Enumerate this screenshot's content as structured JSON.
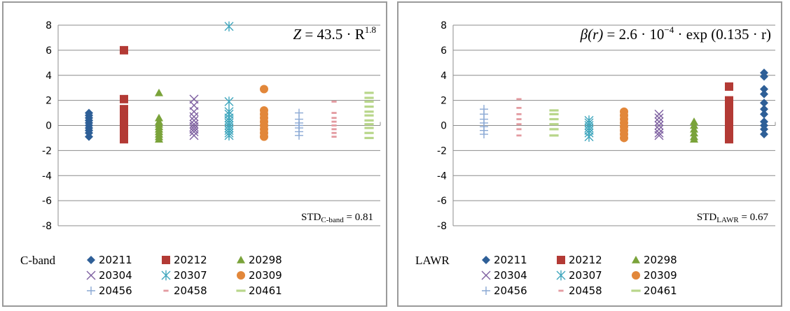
{
  "chart_data": [
    {
      "type": "scatter",
      "panel_label": "C-band",
      "formula": {
        "lhs": "Z",
        "rhs": "43.5 · R",
        "sup": "1.8"
      },
      "std": {
        "prefix": "STD",
        "subscript": "C-band",
        "suffix": " = 0.81"
      },
      "ylim": [
        -8,
        8
      ],
      "yticks": [
        "8",
        "6",
        "4",
        "2",
        "0",
        "-2",
        "-4",
        "-6",
        "-8"
      ],
      "grid": true,
      "legend_position": "bottom",
      "series": [
        {
          "name": "20211",
          "marker": "diamond",
          "color": "#2e5f97",
          "values": [
            -0.9,
            -0.6,
            -0.4,
            -0.2,
            0.0,
            0.2,
            0.4,
            0.6,
            0.8,
            1.0
          ]
        },
        {
          "name": "20212",
          "marker": "square",
          "color": "#b33a35",
          "values": [
            6.0,
            2.1,
            1.3,
            1.0,
            0.7,
            0.4,
            0.1,
            -0.2,
            -0.5,
            -0.8,
            -1.1
          ]
        },
        {
          "name": "20298",
          "marker": "triangle",
          "color": "#7aa33a",
          "values": [
            2.6,
            0.6,
            0.3,
            0.1,
            -0.1,
            -0.3,
            -0.5,
            -0.7,
            -0.9,
            -1.1
          ]
        },
        {
          "name": "20304",
          "marker": "x",
          "color": "#7d5fa0",
          "values": [
            2.1,
            1.6,
            1.1,
            0.7,
            0.4,
            0.1,
            -0.1,
            -0.3,
            -0.5,
            -0.8
          ]
        },
        {
          "name": "20307",
          "marker": "asterisk",
          "color": "#3fa6bd",
          "values": [
            7.9,
            1.9,
            1.1,
            0.9,
            0.6,
            0.4,
            0.2,
            0.0,
            -0.2,
            -0.4,
            -0.6,
            -0.8
          ]
        },
        {
          "name": "20309",
          "marker": "circle",
          "color": "#e2873a",
          "values": [
            2.9,
            1.2,
            0.9,
            0.6,
            0.3,
            0.0,
            -0.3,
            -0.6,
            -0.9
          ]
        },
        {
          "name": "20456",
          "marker": "plus",
          "color": "#8aa8d4",
          "values": [
            1.0,
            0.5,
            0.2,
            0.0,
            -0.2,
            -0.5,
            -0.8
          ]
        },
        {
          "name": "20458",
          "marker": "dash",
          "color": "#e39aa0",
          "values": [
            1.9,
            1.0,
            0.6,
            0.3,
            0.0,
            -0.3,
            -0.6,
            -0.9
          ]
        },
        {
          "name": "20461",
          "marker": "bar",
          "color": "#b8d68a",
          "values": [
            2.6,
            2.2,
            1.9,
            1.5,
            1.1,
            0.8,
            0.4,
            0.1,
            -0.2,
            -0.6,
            -1.0
          ]
        }
      ]
    },
    {
      "type": "scatter",
      "panel_label": "LAWR",
      "formula": {
        "lhs": "β(r)",
        "rhs": "2.6 · 10",
        "sup": "−4",
        "tail": " · exp (0.135 · r)"
      },
      "std": {
        "prefix": "STD",
        "subscript": "LAWR",
        "suffix": " = 0.67"
      },
      "ylim": [
        -8,
        8
      ],
      "yticks": [
        "8",
        "6",
        "4",
        "2",
        "0",
        "-2",
        "-4",
        "-6",
        "-8"
      ],
      "grid": true,
      "legend_position": "bottom",
      "series": [
        {
          "name": "20456",
          "marker": "plus",
          "color": "#8aa8d4",
          "values": [
            1.3,
            0.9,
            0.5,
            0.2,
            -0.1,
            -0.4,
            -0.7
          ]
        },
        {
          "name": "20458",
          "marker": "dash",
          "color": "#e39aa0",
          "values": [
            2.1,
            1.4,
            0.9,
            0.5,
            0.1,
            -0.3,
            -0.8
          ]
        },
        {
          "name": "20461",
          "marker": "bar",
          "color": "#b8d68a",
          "values": [
            1.2,
            0.9,
            0.5,
            0.1,
            -0.3,
            -0.8
          ]
        },
        {
          "name": "20307",
          "marker": "asterisk",
          "color": "#3fa6bd",
          "values": [
            0.4,
            0.2,
            0.0,
            -0.2,
            -0.4,
            -0.6,
            -0.9
          ]
        },
        {
          "name": "20309",
          "marker": "circle",
          "color": "#e2873a",
          "values": [
            1.1,
            0.8,
            0.5,
            0.2,
            -0.1,
            -0.4,
            -0.7,
            -1.0
          ]
        },
        {
          "name": "20304",
          "marker": "x",
          "color": "#7d5fa0",
          "values": [
            0.9,
            0.6,
            0.3,
            0.0,
            -0.3,
            -0.6,
            -0.8
          ]
        },
        {
          "name": "20298",
          "marker": "triangle",
          "color": "#7aa33a",
          "values": [
            0.3,
            0.0,
            -0.3,
            -0.6,
            -0.9,
            -1.1
          ]
        },
        {
          "name": "20212",
          "marker": "square",
          "color": "#b33a35",
          "values": [
            3.1,
            2.0,
            1.4,
            0.9,
            0.4,
            -0.1,
            -0.6,
            -1.1
          ]
        },
        {
          "name": "20211",
          "marker": "diamond",
          "color": "#2e5f97",
          "values": [
            4.2,
            3.9,
            2.9,
            2.5,
            1.8,
            1.3,
            0.9,
            0.3,
            0.0,
            -0.3,
            -0.7
          ]
        }
      ]
    }
  ]
}
